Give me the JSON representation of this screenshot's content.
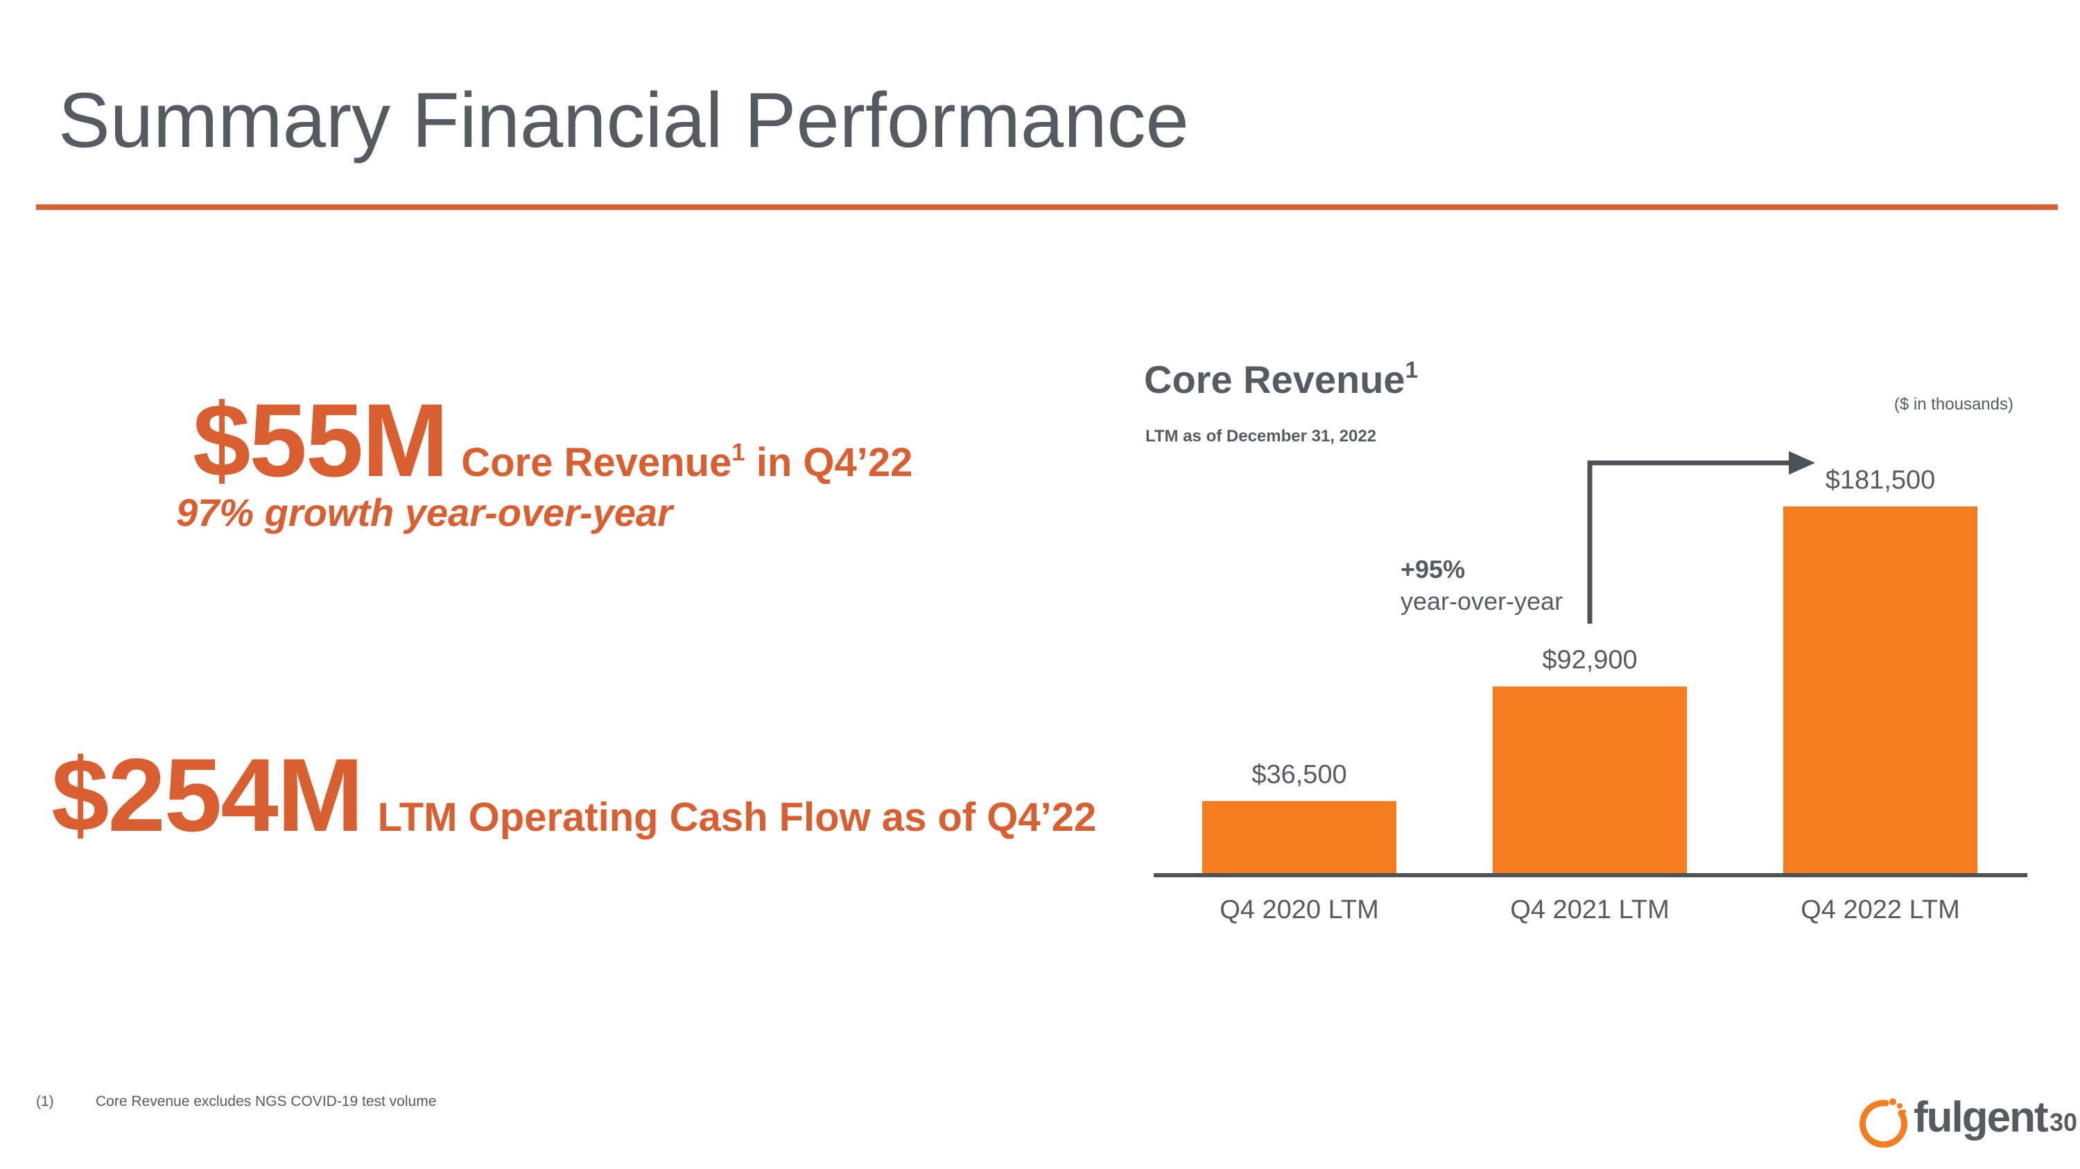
{
  "slide": {
    "title": "Summary Financial Performance",
    "page_number": "30",
    "footnote": {
      "number": "(1)",
      "text": "Core Revenue excludes NGS COVID-19 test volume"
    },
    "logo": {
      "name": "fulgent-logo-icon",
      "wordmark": "fulgent"
    }
  },
  "highlights": {
    "core_revenue": {
      "value": "$55M",
      "label_before": "Core Revenue",
      "footnote_marker": "1",
      "label_after": " in Q4’22",
      "growth": "97% growth year-over-year"
    },
    "cash_flow": {
      "value": "$254M",
      "label": "LTM Operating Cash Flow as of Q4’22"
    }
  },
  "chart_header": {
    "title": "Core Revenue",
    "title_footnote": "1",
    "subtitle": "LTM as of December 31, 2022",
    "units": "($ in thousands)"
  },
  "colors": {
    "accent": "#d95f30",
    "bar": "#f57c1f",
    "text": "#555b61",
    "axis": "#4d5257"
  },
  "chart_data": {
    "type": "bar",
    "title": "Core Revenue",
    "subtitle": "LTM as of December 31, 2022",
    "units": "($ in thousands)",
    "categories": [
      "Q4 2020 LTM",
      "Q4 2021 LTM",
      "Q4 2022 LTM"
    ],
    "values": [
      36500,
      92900,
      181500
    ],
    "value_labels": [
      "$36,500",
      "$92,900",
      "$181,500"
    ],
    "ylim": [
      0,
      190000
    ],
    "grid": false,
    "annotation": {
      "from_category": "Q4 2021 LTM",
      "to_category": "Q4 2022 LTM",
      "pct": "+95%",
      "text": "year-over-year"
    }
  }
}
